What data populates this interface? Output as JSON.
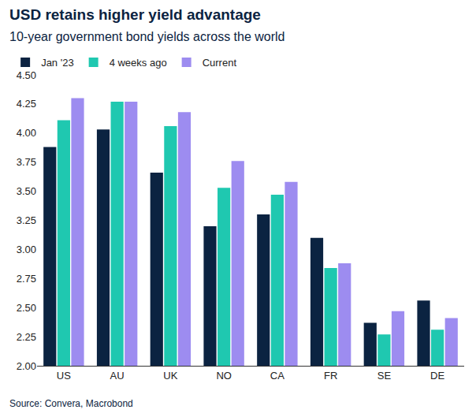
{
  "chart_data": {
    "type": "bar",
    "title": "USD retains higher yield advantage",
    "subtitle": "10-year government bond yields across the world",
    "annotations": [
      "Source: Convera, Macrobond"
    ],
    "categories": [
      "US",
      "AU",
      "UK",
      "NO",
      "CA",
      "FR",
      "SE",
      "DE"
    ],
    "series": [
      {
        "name": "Jan '23",
        "color": "#0b2341",
        "values": [
          3.88,
          4.03,
          3.66,
          3.2,
          3.3,
          3.1,
          2.37,
          2.56
        ]
      },
      {
        "name": "4 weeks ago",
        "color": "#1fc8b0",
        "values": [
          4.11,
          4.27,
          4.06,
          3.53,
          3.47,
          2.84,
          2.27,
          2.31
        ]
      },
      {
        "name": "Current",
        "color": "#9d8cf0",
        "values": [
          4.3,
          4.27,
          4.18,
          3.76,
          3.58,
          2.88,
          2.47,
          2.41
        ]
      }
    ],
    "ylim": [
      2,
      4.5
    ],
    "yticks": [
      {
        "value": 2,
        "label": "2.00"
      },
      {
        "value": 2.25,
        "label": "2.25"
      },
      {
        "value": 2.5,
        "label": "2.50"
      },
      {
        "value": 2.75,
        "label": "2.75"
      },
      {
        "value": 3,
        "label": "3.00"
      },
      {
        "value": 3.25,
        "label": "3.25"
      },
      {
        "value": 3.5,
        "label": "3.50"
      },
      {
        "value": 3.75,
        "label": "3.75"
      },
      {
        "value": 4,
        "label": "4.00"
      },
      {
        "value": 4.25,
        "label": "4.25"
      },
      {
        "value": 4.5,
        "label": "4.50"
      }
    ],
    "grid": false,
    "legend": "top-left",
    "data_labels": false
  }
}
